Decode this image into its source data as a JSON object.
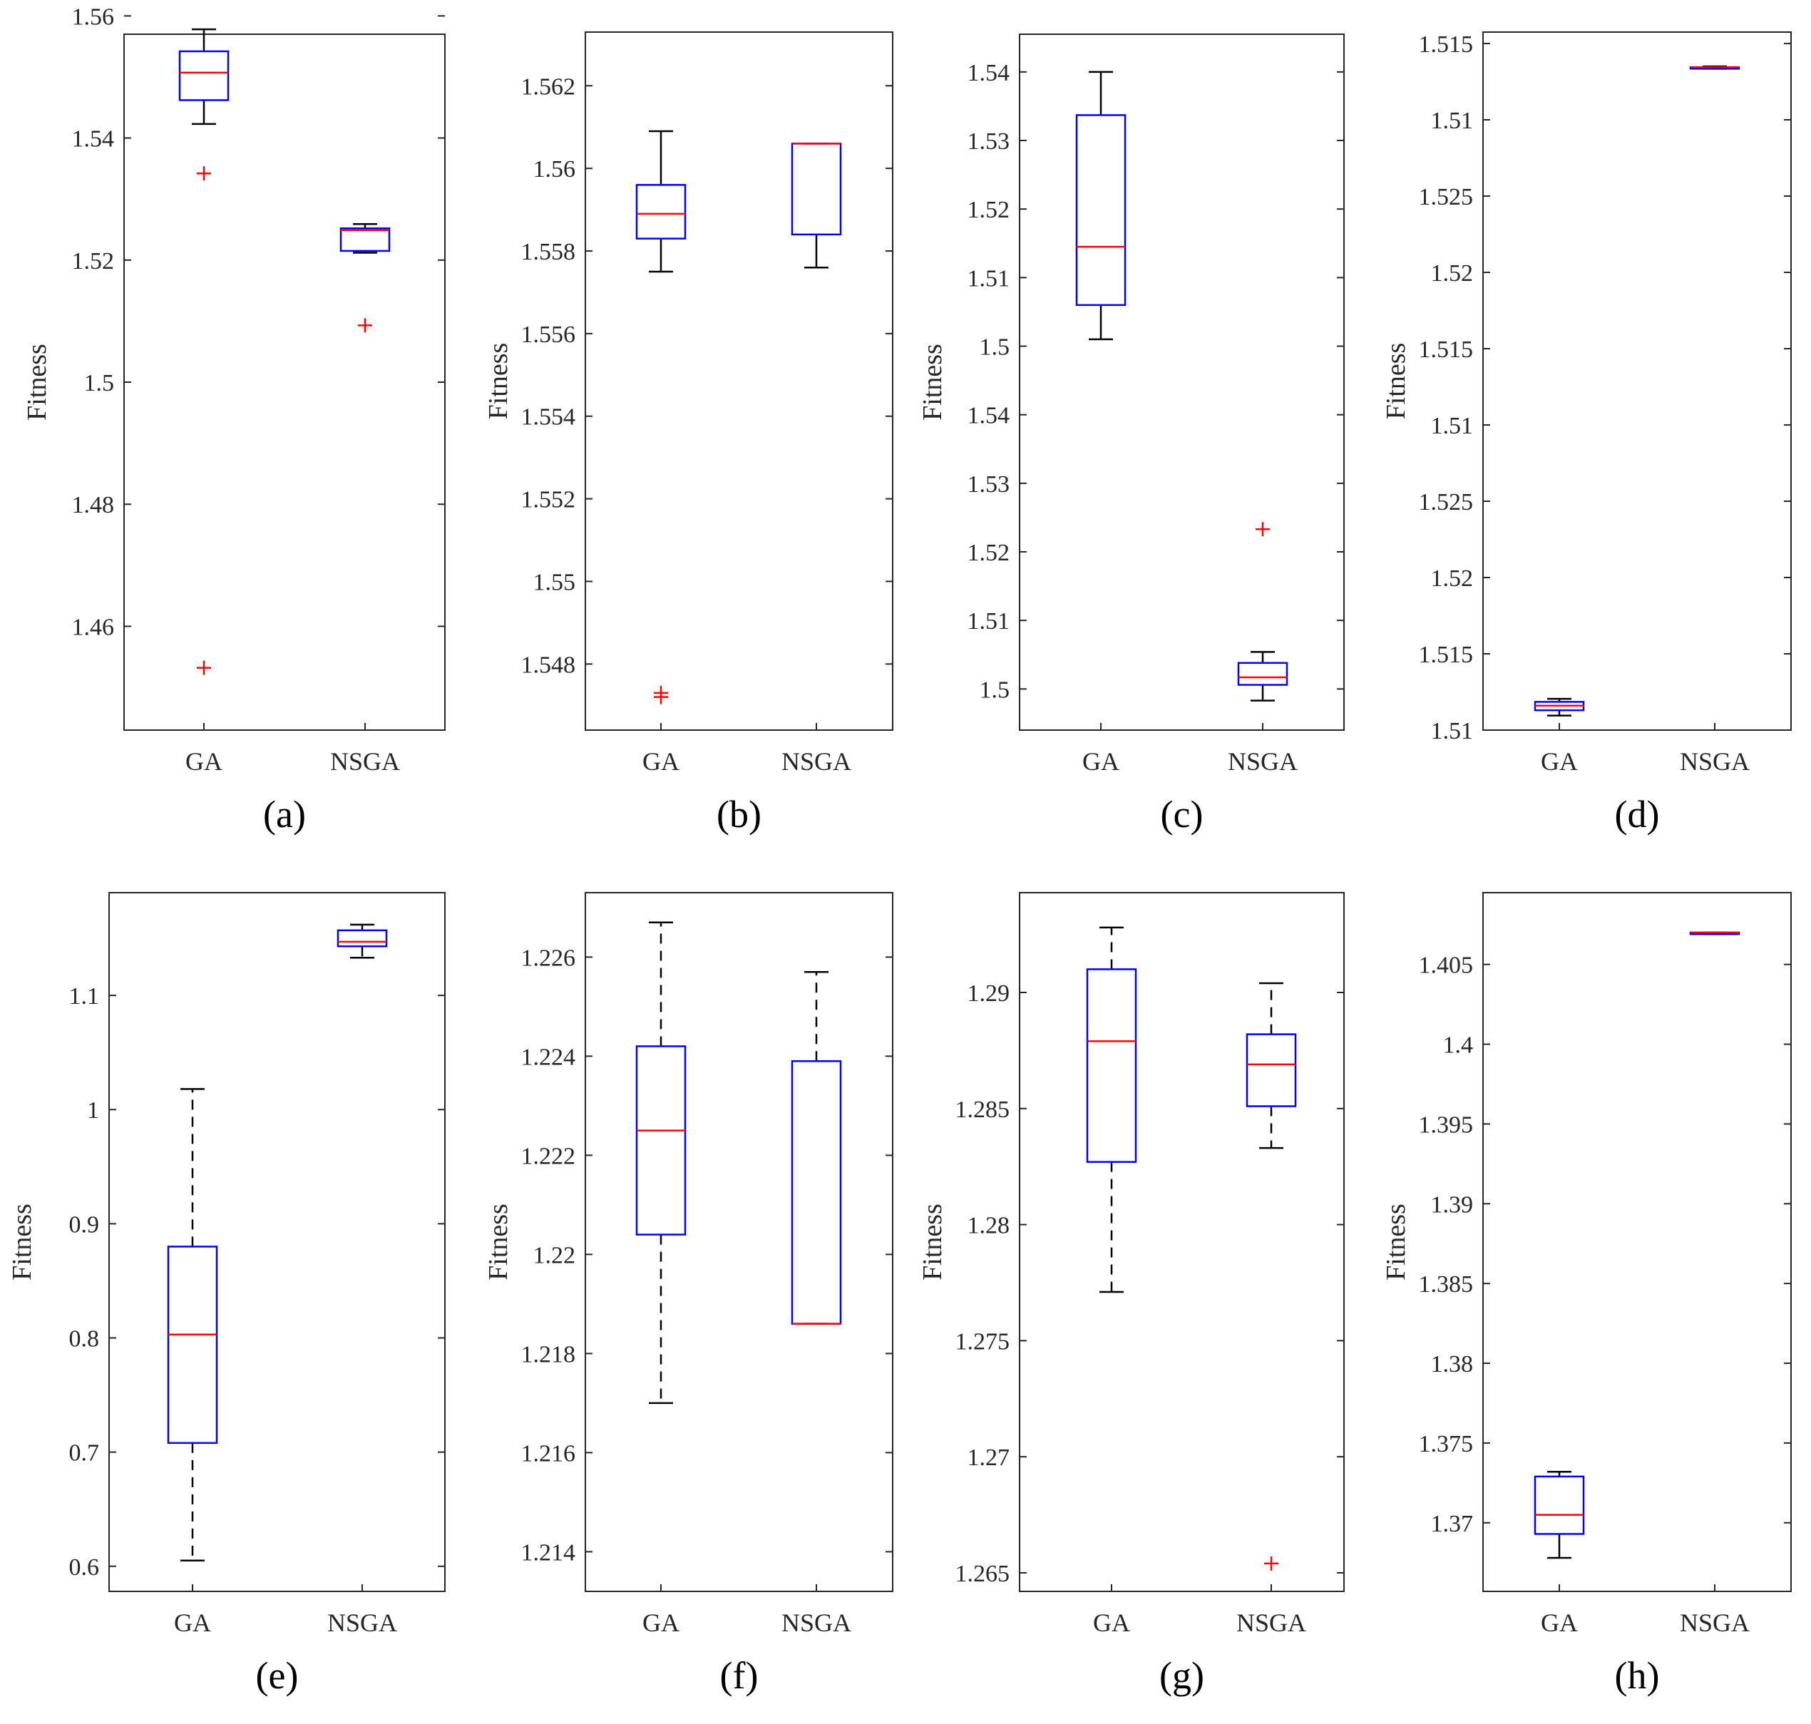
{
  "colors": {
    "box": "#0000ff",
    "median": "#ff0000",
    "whisker": "#000000",
    "outlier": "#ff0000",
    "axis": "#262626"
  },
  "chart_data": [
    {
      "label": "(a)",
      "type": "boxplot",
      "ylabel": "Fitness",
      "categories": [
        "GA",
        "NSGA"
      ],
      "ylim": [
        1.443,
        1.557
      ],
      "ytick_values": [
        1.46,
        1.48,
        1.5,
        1.52,
        1.54,
        1.56
      ],
      "ytick_labels": [
        "1.46",
        "1.48",
        "1.5",
        "1.52",
        "1.54",
        "1.56"
      ],
      "whisker_style": "solid",
      "boxes": [
        {
          "name": "GA",
          "whisker_low": 1.5423,
          "q1": 1.5462,
          "median": 1.5507,
          "q3": 1.5542,
          "whisker_high": 1.5578,
          "outliers": [
            1.5342,
            1.4532
          ]
        },
        {
          "name": "NSGA",
          "whisker_low": 1.5212,
          "q1": 1.5215,
          "median": 1.5249,
          "q3": 1.5252,
          "whisker_high": 1.5259,
          "outliers": [
            1.5093
          ]
        }
      ]
    },
    {
      "label": "(b)",
      "type": "boxplot",
      "ylabel": "Fitness",
      "categories": [
        "GA",
        "NSGA"
      ],
      "ylim": [
        1.5464,
        1.5633
      ],
      "ytick_values": [
        1.548,
        1.55,
        1.552,
        1.554,
        1.556,
        1.558,
        1.56,
        1.562
      ],
      "ytick_labels": [
        "1.548",
        "1.55",
        "1.552",
        "1.554",
        "1.556",
        "1.558",
        "1.56",
        "1.562"
      ],
      "whisker_style": "solid",
      "boxes": [
        {
          "name": "GA",
          "whisker_low": 1.5575,
          "q1": 1.5583,
          "median": 1.5589,
          "q3": 1.5596,
          "whisker_high": 1.5609,
          "outliers": [
            1.5473,
            1.5472
          ]
        },
        {
          "name": "NSGA",
          "whisker_low": 1.5576,
          "q1": 1.5584,
          "median": 1.5606,
          "q3": 1.5606,
          "whisker_high": 1.5606,
          "outliers": []
        }
      ]
    },
    {
      "label": "(c)",
      "type": "boxplot",
      "ylabel": "Fitness",
      "categories": [
        "GA",
        "NSGA"
      ],
      "ylim": [
        0,
        10.15
      ],
      "ytick_values": [
        0.6,
        1.6,
        2.6,
        3.6,
        4.6,
        5.6,
        6.6,
        7.6,
        8.6,
        9.6
      ],
      "ytick_labels": [
        "1.5",
        "1.51",
        "1.52",
        "1.53",
        "1.54",
        "1.5",
        "1.51",
        "1.52",
        "1.53",
        "1.54"
      ],
      "whisker_style": "solid",
      "boxes": [
        {
          "name": "GA",
          "whisker_low": 5.7,
          "q1": 6.2,
          "median": 7.05,
          "q3": 8.97,
          "whisker_high": 9.6,
          "outliers": []
        },
        {
          "name": "NSGA",
          "whisker_low": 0.43,
          "q1": 0.66,
          "median": 0.77,
          "q3": 0.98,
          "whisker_high": 1.14,
          "outliers": [
            2.93
          ]
        }
      ]
    },
    {
      "label": "(d)",
      "type": "boxplot",
      "ylabel": "Fitness",
      "categories": [
        "GA",
        "NSGA"
      ],
      "ylim": [
        0,
        9.15
      ],
      "ytick_values": [
        0,
        1,
        2,
        3,
        4,
        5,
        6,
        7,
        8,
        9
      ],
      "ytick_labels": [
        "1.51",
        "1.515",
        "1.52",
        "1.525",
        "1.51",
        "1.515",
        "1.52",
        "1.525",
        "1.51",
        "1.515"
      ],
      "whisker_style": "solid",
      "boxes": [
        {
          "name": "GA",
          "whisker_low": 0.19,
          "q1": 0.26,
          "median": 0.32,
          "q3": 0.37,
          "whisker_high": 0.41,
          "outliers": []
        },
        {
          "name": "NSGA",
          "whisker_low": 8.67,
          "q1": 8.67,
          "median": 8.69,
          "q3": 8.69,
          "whisker_high": 8.7,
          "outliers": []
        }
      ]
    },
    {
      "label": "(e)",
      "type": "boxplot",
      "ylabel": "Fitness",
      "categories": [
        "GA",
        "NSGA"
      ],
      "ylim": [
        0.578,
        1.19
      ],
      "ytick_values": [
        0.6,
        0.7,
        0.8,
        0.9,
        1,
        1.1
      ],
      "ytick_labels": [
        "0.6",
        "0.7",
        "0.8",
        "0.9",
        "1",
        "1.1"
      ],
      "whisker_style": "dashed",
      "boxes": [
        {
          "name": "GA",
          "whisker_low": 0.605,
          "q1": 0.708,
          "median": 0.803,
          "q3": 0.88,
          "whisker_high": 1.018,
          "outliers": []
        },
        {
          "name": "NSGA",
          "whisker_low": 1.133,
          "q1": 1.143,
          "median": 1.147,
          "q3": 1.157,
          "whisker_high": 1.162,
          "outliers": []
        }
      ]
    },
    {
      "label": "(f)",
      "type": "boxplot",
      "ylabel": "Fitness",
      "categories": [
        "GA",
        "NSGA"
      ],
      "ylim": [
        1.2132,
        1.2273
      ],
      "ytick_values": [
        1.214,
        1.216,
        1.218,
        1.22,
        1.222,
        1.224,
        1.226
      ],
      "ytick_labels": [
        "1.214",
        "1.216",
        "1.218",
        "1.22",
        "1.222",
        "1.224",
        "1.226"
      ],
      "whisker_style": "dashed",
      "boxes": [
        {
          "name": "GA",
          "whisker_low": 1.217,
          "q1": 1.2204,
          "median": 1.2225,
          "q3": 1.2242,
          "whisker_high": 1.2267,
          "outliers": []
        },
        {
          "name": "NSGA",
          "whisker_low": 1.2186,
          "q1": 1.2186,
          "median": 1.2186,
          "q3": 1.2239,
          "whisker_high": 1.2257,
          "outliers": []
        }
      ]
    },
    {
      "label": "(g)",
      "type": "boxplot",
      "ylabel": "Fitness",
      "categories": [
        "GA",
        "NSGA"
      ],
      "ylim": [
        1.2642,
        1.2943
      ],
      "ytick_values": [
        1.265,
        1.27,
        1.275,
        1.28,
        1.285,
        1.29
      ],
      "ytick_labels": [
        "1.265",
        "1.27",
        "1.275",
        "1.28",
        "1.285",
        "1.29"
      ],
      "whisker_style": "dashed",
      "boxes": [
        {
          "name": "GA",
          "whisker_low": 1.2771,
          "q1": 1.2827,
          "median": 1.2879,
          "q3": 1.291,
          "whisker_high": 1.2928,
          "outliers": []
        },
        {
          "name": "NSGA",
          "whisker_low": 1.2833,
          "q1": 1.2851,
          "median": 1.2869,
          "q3": 1.2882,
          "whisker_high": 1.2904,
          "outliers": [
            1.2654
          ]
        }
      ]
    },
    {
      "label": "(h)",
      "type": "boxplot",
      "ylabel": "Fitness",
      "categories": [
        "GA",
        "NSGA"
      ],
      "ylim": [
        1.3657,
        1.4095
      ],
      "ytick_values": [
        1.37,
        1.375,
        1.38,
        1.385,
        1.39,
        1.395,
        1.4,
        1.405
      ],
      "ytick_labels": [
        "1.37",
        "1.375",
        "1.38",
        "1.385",
        "1.39",
        "1.395",
        "1.4",
        "1.405"
      ],
      "whisker_style": "solid",
      "boxes": [
        {
          "name": "GA",
          "whisker_low": 1.3678,
          "q1": 1.3693,
          "median": 1.3705,
          "q3": 1.3729,
          "whisker_high": 1.3732,
          "outliers": []
        },
        {
          "name": "NSGA",
          "whisker_low": 1.4069,
          "q1": 1.4069,
          "median": 1.407,
          "q3": 1.407,
          "whisker_high": 1.407,
          "outliers": []
        }
      ]
    }
  ]
}
